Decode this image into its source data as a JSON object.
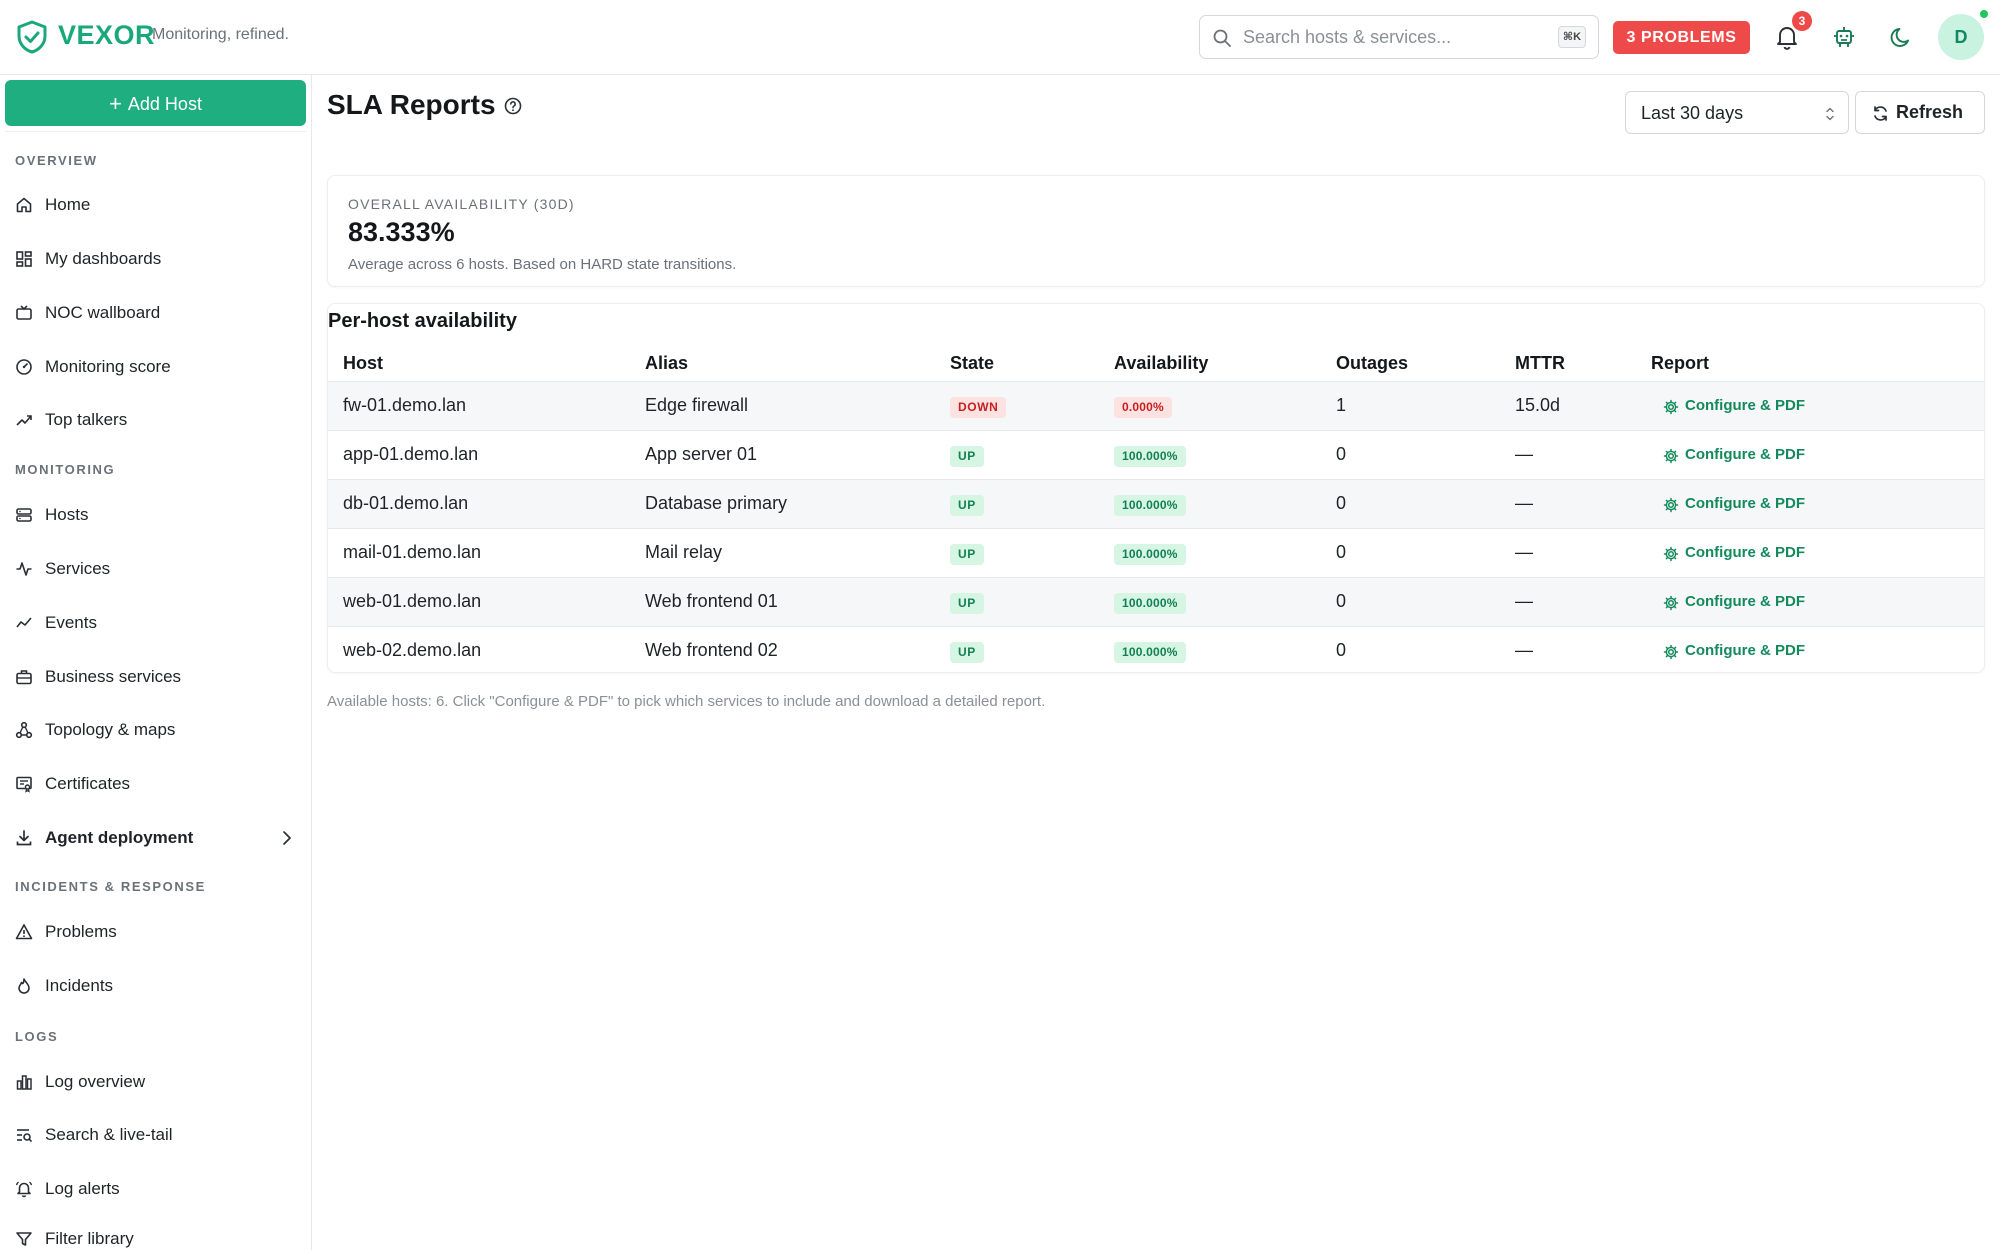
{
  "app": {
    "brand": "VEXOR",
    "tagline": "Monitoring, refined.",
    "accent_color": "#1eae7f",
    "danger_color": "#ef4a4a"
  },
  "header": {
    "search_placeholder": "Search hosts & services...",
    "search_shortcut": "⌘K",
    "problems_label": "3 PROBLEMS",
    "notification_count": "3",
    "avatar_initial": "D"
  },
  "sidebar": {
    "add_host_label": "Add Host",
    "sections": [
      {
        "title": "OVERVIEW",
        "items": [
          {
            "label": "Home",
            "icon": "home-icon"
          },
          {
            "label": "My dashboards",
            "icon": "dashboard-grid-icon"
          },
          {
            "label": "NOC wallboard",
            "icon": "tv-icon"
          },
          {
            "label": "Monitoring score",
            "icon": "gauge-icon"
          },
          {
            "label": "Top talkers",
            "icon": "trending-up-icon"
          }
        ]
      },
      {
        "title": "MONITORING",
        "items": [
          {
            "label": "Hosts",
            "icon": "server-icon"
          },
          {
            "label": "Services",
            "icon": "activity-icon"
          },
          {
            "label": "Events",
            "icon": "line-chart-icon"
          },
          {
            "label": "Business services",
            "icon": "briefcase-icon"
          },
          {
            "label": "Topology & maps",
            "icon": "network-icon"
          },
          {
            "label": "Certificates",
            "icon": "certificate-icon"
          },
          {
            "label": "Agent deployment",
            "icon": "download-icon"
          }
        ]
      },
      {
        "title": "INCIDENTS & RESPONSE",
        "items": [
          {
            "label": "Problems",
            "icon": "warning-triangle-icon"
          },
          {
            "label": "Incidents",
            "icon": "flame-icon"
          }
        ]
      },
      {
        "title": "LOGS",
        "items": [
          {
            "label": "Log overview",
            "icon": "bar-chart-icon"
          },
          {
            "label": "Search & live-tail",
            "icon": "text-search-icon"
          },
          {
            "label": "Log alerts",
            "icon": "bell-ring-icon"
          },
          {
            "label": "Filter library",
            "icon": "filter-icon"
          }
        ]
      }
    ]
  },
  "page": {
    "title": "SLA Reports",
    "range_selected": "Last 30 days",
    "refresh_label": "Refresh"
  },
  "summary": {
    "label": "OVERALL AVAILABILITY (30D)",
    "value": "83.333%",
    "subtitle": "Average across 6 hosts. Based on HARD state transitions."
  },
  "table": {
    "title": "Per-host availability",
    "columns": [
      "Host",
      "Alias",
      "State",
      "Availability",
      "Outages",
      "MTTR",
      "Report"
    ],
    "report_action_label": "Configure & PDF",
    "rows": [
      {
        "host": "fw-01.demo.lan",
        "alias": "Edge firewall",
        "state": "DOWN",
        "availability": "0.000%",
        "outages": "1",
        "mttr": "15.0d"
      },
      {
        "host": "app-01.demo.lan",
        "alias": "App server 01",
        "state": "UP",
        "availability": "100.000%",
        "outages": "0",
        "mttr": "—"
      },
      {
        "host": "db-01.demo.lan",
        "alias": "Database primary",
        "state": "UP",
        "availability": "100.000%",
        "outages": "0",
        "mttr": "—"
      },
      {
        "host": "mail-01.demo.lan",
        "alias": "Mail relay",
        "state": "UP",
        "availability": "100.000%",
        "outages": "0",
        "mttr": "—"
      },
      {
        "host": "web-01.demo.lan",
        "alias": "Web frontend 01",
        "state": "UP",
        "availability": "100.000%",
        "outages": "0",
        "mttr": "—"
      },
      {
        "host": "web-02.demo.lan",
        "alias": "Web frontend 02",
        "state": "UP",
        "availability": "100.000%",
        "outages": "0",
        "mttr": "—"
      }
    ]
  },
  "footnote": "Available hosts: 6. Click \"Configure & PDF\" to pick which services to include and download a detailed report."
}
